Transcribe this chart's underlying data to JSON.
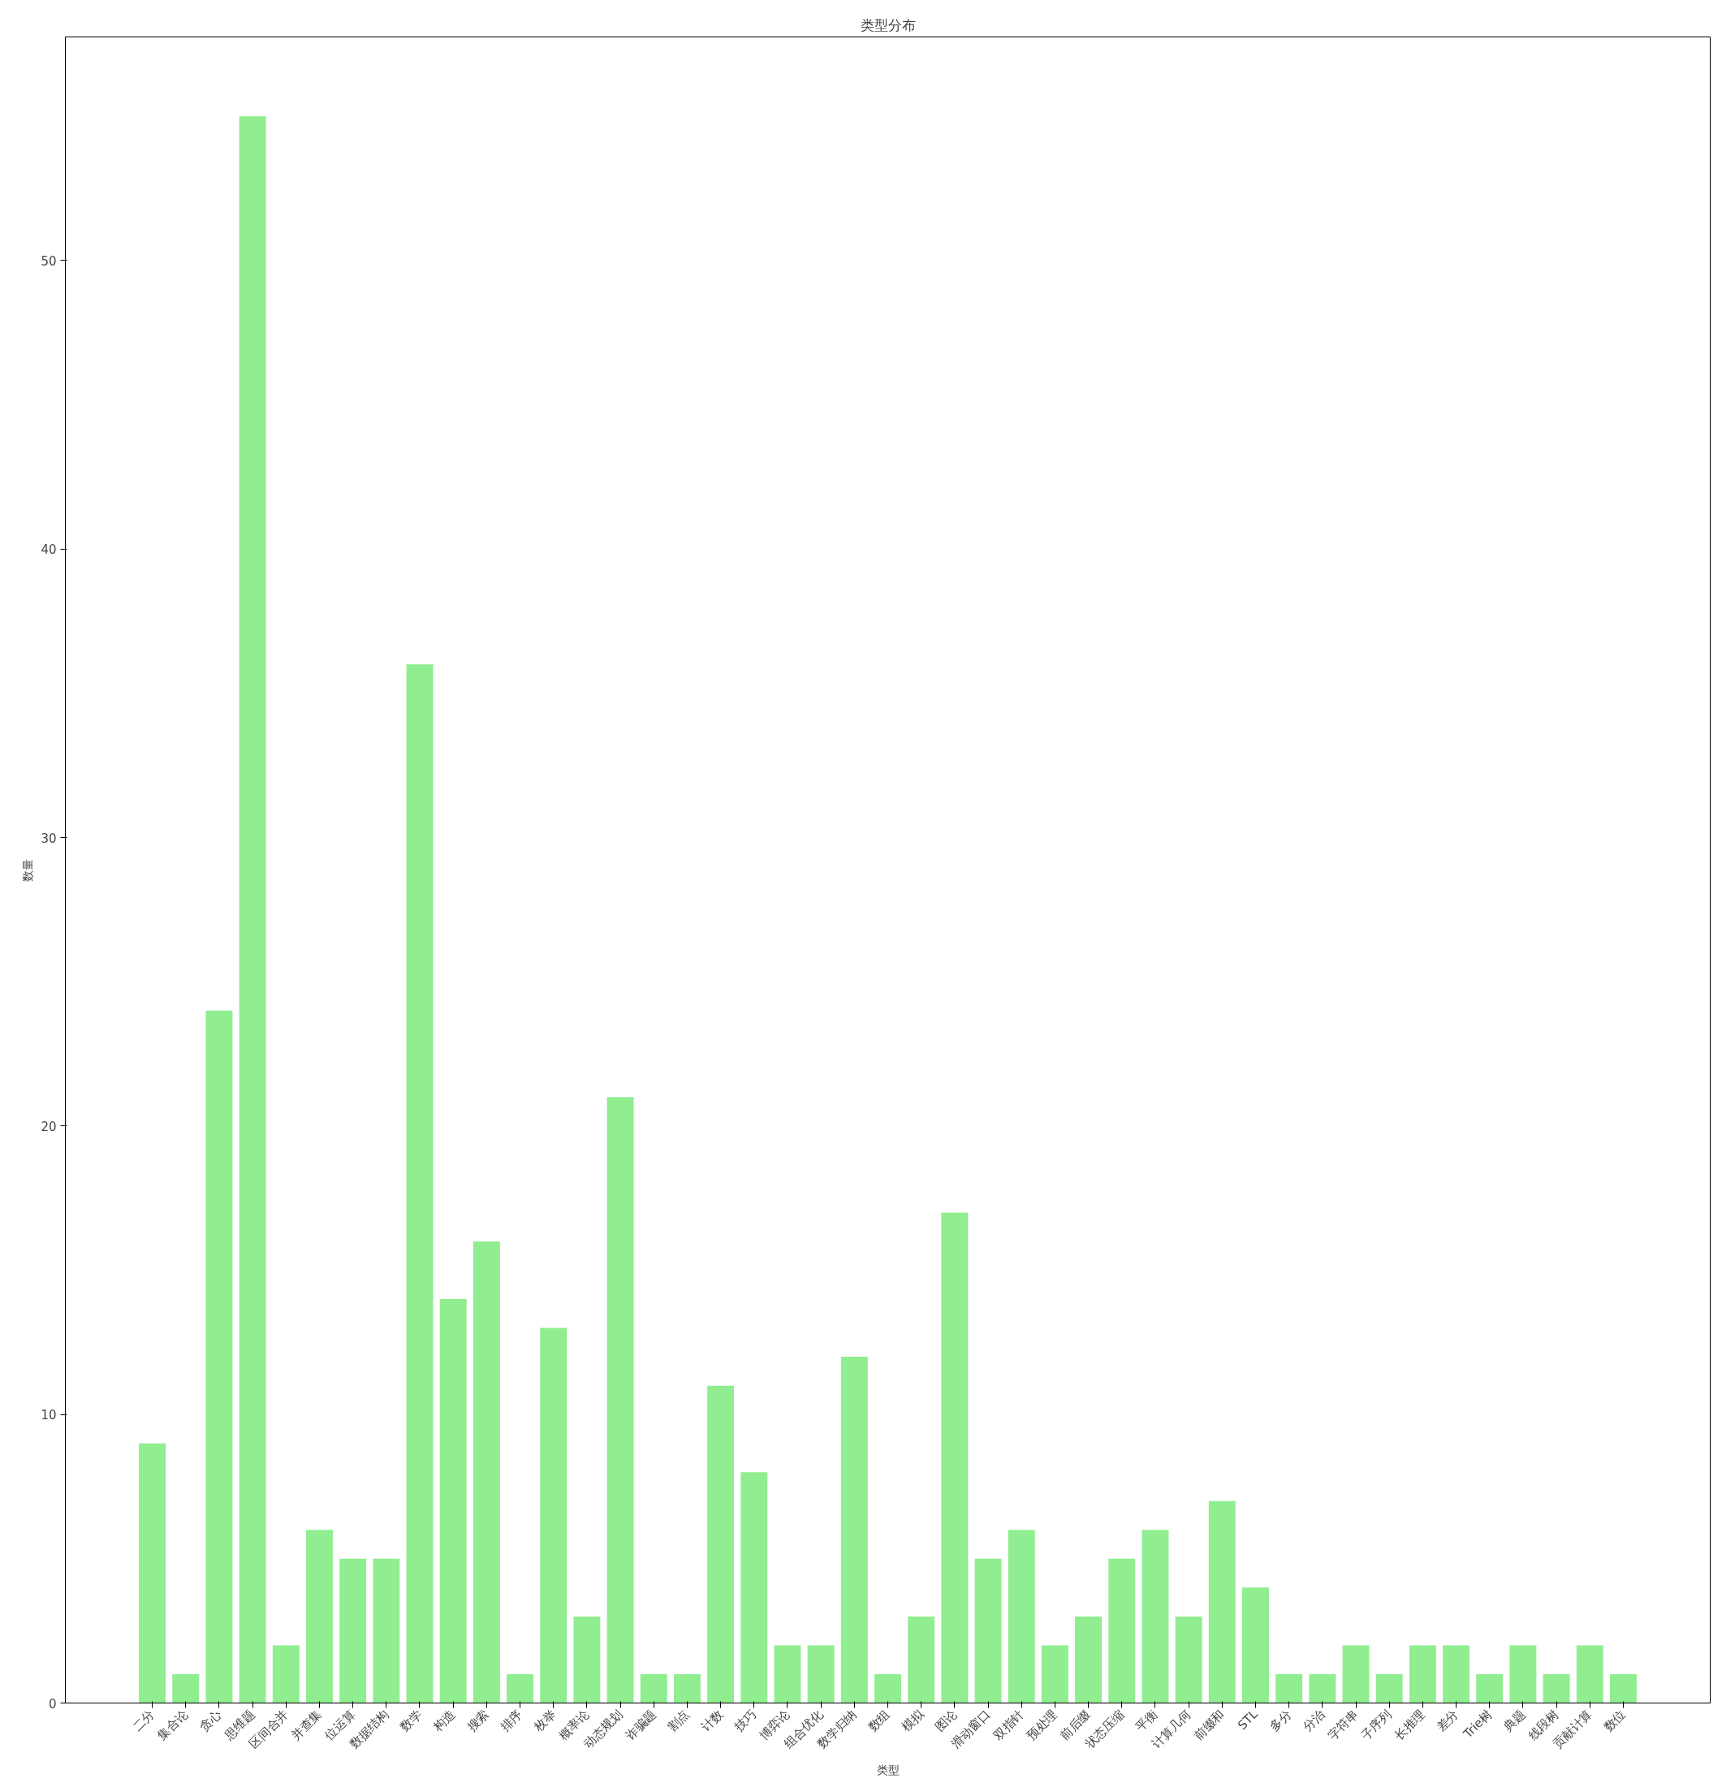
{
  "chart_data": {
    "type": "bar",
    "title": "类型分布",
    "xlabel": "类型",
    "ylabel": "数量",
    "categories": [
      "二分",
      "集合论",
      "贪心",
      "思维题",
      "区间合并",
      "并查集",
      "位运算",
      "数据结构",
      "数学",
      "构造",
      "搜索",
      "排序",
      "枚举",
      "概率论",
      "动态规划",
      "诈骗题",
      "割点",
      "计数",
      "技巧",
      "博弈论",
      "组合优化",
      "数学归纳",
      "数组",
      "模拟",
      "图论",
      "滑动窗口",
      "双指针",
      "预处理",
      "前后缀",
      "状态压缩",
      "平衡",
      "计算几何",
      "前缀和",
      "STL",
      "多分",
      "分治",
      "字符串",
      "子序列",
      "长推理",
      "差分",
      "Trie树",
      "典题",
      "线段树",
      "贡献计算",
      "数位"
    ],
    "values": [
      9,
      1,
      24,
      55,
      2,
      6,
      5,
      5,
      36,
      14,
      16,
      1,
      13,
      3,
      21,
      1,
      1,
      11,
      8,
      2,
      2,
      12,
      1,
      3,
      17,
      5,
      6,
      2,
      3,
      5,
      6,
      3,
      7,
      4,
      1,
      1,
      2,
      1,
      2,
      2,
      1,
      2,
      1,
      2,
      1
    ],
    "color": "#90ee90",
    "ylim": [
      0,
      57.75
    ],
    "yticks": [
      0,
      10,
      20,
      30,
      40,
      50
    ],
    "grid": false
  }
}
